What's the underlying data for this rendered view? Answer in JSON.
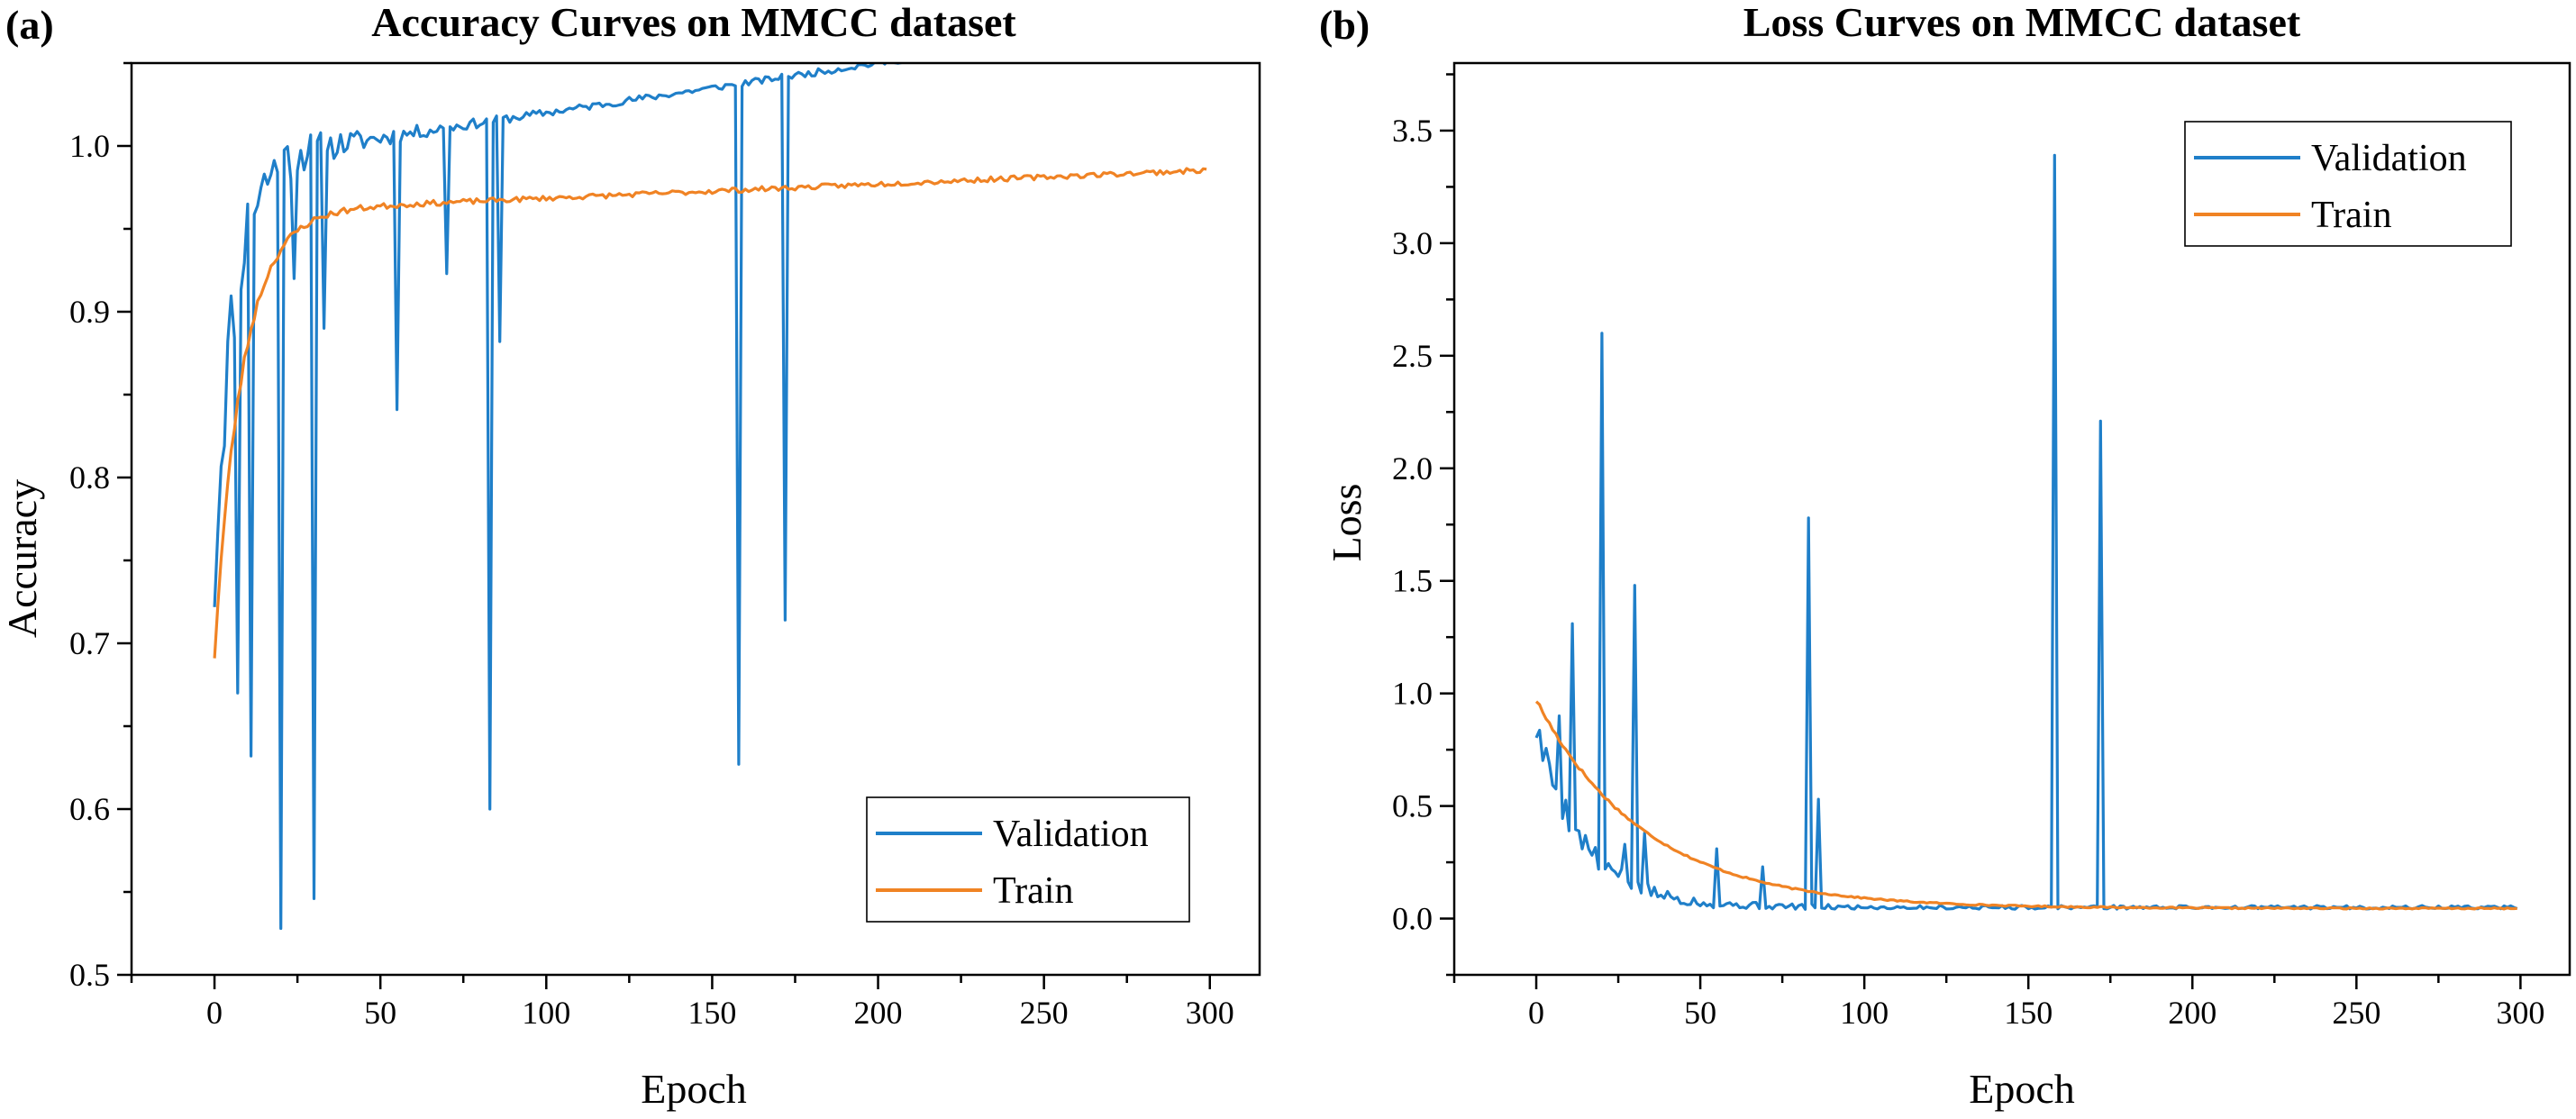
{
  "chart_data": [
    {
      "type": "line",
      "panel_label": "(a)",
      "title": "Accuracy Curves on MMCC dataset",
      "xlabel": "Epoch",
      "ylabel": "Accuracy",
      "xlim": [
        -25,
        315
      ],
      "ylim": [
        0.5,
        1.05
      ],
      "xticks": [
        0,
        50,
        100,
        150,
        200,
        250,
        300
      ],
      "yticks": [
        0.5,
        0.6,
        0.7,
        0.8,
        0.9,
        1.0
      ],
      "ytick_labels": [
        "0.5",
        "0.6",
        "0.7",
        "0.8",
        "0.9",
        "1.0"
      ],
      "legend_position": "lower-right",
      "series": [
        {
          "name": "Validation",
          "color": "#1f7fc9",
          "smooth": {
            "start": 0.74,
            "end": 0.99,
            "k": 0.18,
            "late": 0.0003
          },
          "noise": {
            "amp_early": 0.035,
            "amp_late": 0.002,
            "decay": 0.045,
            "seed": 11
          },
          "spikes": [
            [
              7,
              0.67
            ],
            [
              11,
              0.632
            ],
            [
              20,
              0.528
            ],
            [
              24,
              0.92
            ],
            [
              30,
              0.546
            ],
            [
              33,
              0.89
            ],
            [
              55,
              0.841
            ],
            [
              70,
              0.923
            ],
            [
              83,
              0.6
            ],
            [
              86,
              0.882
            ],
            [
              158,
              0.627
            ],
            [
              172,
              0.714
            ]
          ]
        },
        {
          "name": "Train",
          "color": "#f08324",
          "smooth": {
            "start": 0.693,
            "end": 0.96,
            "k": 0.12,
            "late": 8.5e-05
          },
          "noise": {
            "amp_early": 0.004,
            "amp_late": 0.0015,
            "decay": 0.05,
            "seed": 23
          },
          "spikes": []
        }
      ]
    },
    {
      "type": "line",
      "panel_label": "(b)",
      "title": "Loss Curves on MMCC dataset",
      "xlabel": "Epoch",
      "ylabel": "Loss",
      "xlim": [
        -25,
        315
      ],
      "ylim": [
        -0.25,
        3.8
      ],
      "xticks": [
        0,
        50,
        100,
        150,
        200,
        250,
        300
      ],
      "yticks": [
        0.0,
        0.5,
        1.0,
        1.5,
        2.0,
        2.5,
        3.0,
        3.5
      ],
      "ytick_labels": [
        "0.0",
        "0.5",
        "1.0",
        "1.5",
        "2.0",
        "2.5",
        "3.0",
        "3.5"
      ],
      "legend_position": "top-right",
      "series": [
        {
          "name": "Validation",
          "color": "#1f7fc9",
          "smooth": {
            "start": 0.85,
            "end": 0.05,
            "k": 0.07,
            "late": 0
          },
          "noise": {
            "amp_early": 0.09,
            "amp_late": 0.008,
            "decay": 0.035,
            "seed": 5
          },
          "spikes": [
            [
              7,
              0.9
            ],
            [
              11,
              1.31
            ],
            [
              20,
              2.6
            ],
            [
              27,
              0.33
            ],
            [
              30,
              1.48
            ],
            [
              33,
              0.38
            ],
            [
              55,
              0.31
            ],
            [
              69,
              0.23
            ],
            [
              83,
              1.78
            ],
            [
              86,
              0.53
            ],
            [
              158,
              3.39
            ],
            [
              172,
              2.21
            ]
          ]
        },
        {
          "name": "Train",
          "color": "#f08324",
          "smooth": {
            "start": 0.97,
            "end": 0.045,
            "k": 0.03,
            "late": 0
          },
          "noise": {
            "amp_early": 0.012,
            "amp_late": 0.003,
            "decay": 0.05,
            "seed": 17
          },
          "spikes": []
        }
      ]
    }
  ]
}
